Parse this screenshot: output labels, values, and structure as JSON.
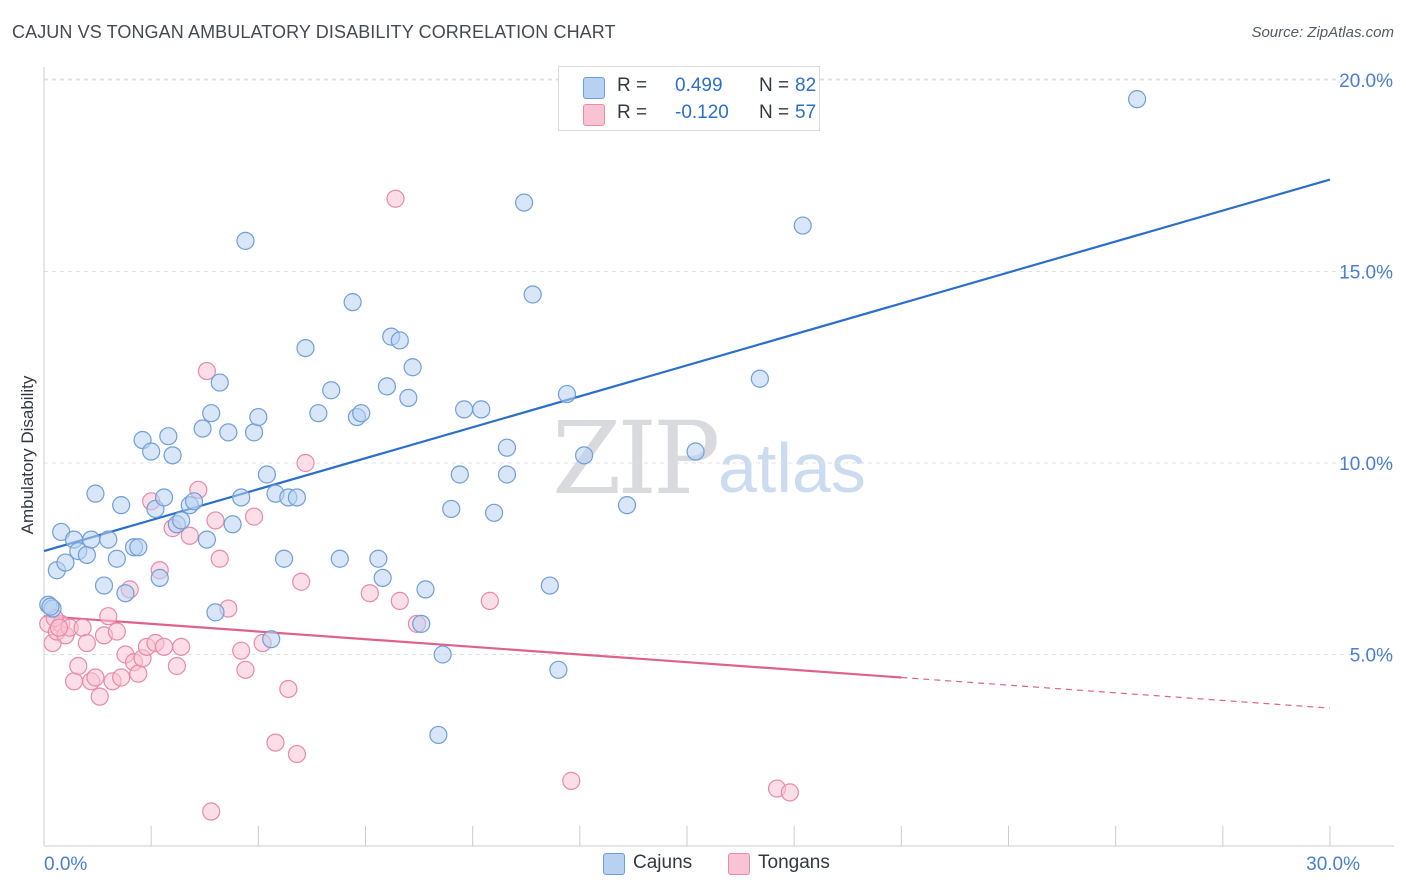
{
  "header": {
    "title": "CAJUN VS TONGAN AMBULATORY DISABILITY CORRELATION CHART",
    "source": "Source: ZipAtlas.com"
  },
  "watermark": {
    "part1": "ZIP",
    "part2": "atlas"
  },
  "legend_top": {
    "rows": [
      {
        "r_label": "R =",
        "r_value": "0.499",
        "n_label": "N =",
        "n_value": "82"
      },
      {
        "r_label": "R =",
        "r_value": "-0.120",
        "n_label": "N =",
        "n_value": "57"
      }
    ]
  },
  "legend_bottom": {
    "items": [
      "Cajuns",
      "Tongans"
    ]
  },
  "colors": {
    "cajun_fill": "#b8d1f2",
    "cajun_stroke": "#6f9fd8",
    "cajun_line": "#2c6fca",
    "tongan_fill": "#f8c3d3",
    "tongan_stroke": "#e88aa8",
    "tongan_line": "#e0628a",
    "axis_label": "#4a7fcf",
    "grid": "#dde0e4"
  },
  "chart_data": {
    "type": "scatter",
    "title": "CAJUN VS TONGAN AMBULATORY DISABILITY CORRELATION CHART",
    "xlabel": "",
    "ylabel": "Ambulatory Disability",
    "xlim": [
      0,
      30
    ],
    "ylim": [
      0,
      20
    ],
    "x_tick_labels": [
      {
        "value": 0,
        "label": "0.0%"
      },
      {
        "value": 30,
        "label": "30.0%"
      }
    ],
    "y_tick_labels": [
      {
        "value": 5,
        "label": "5.0%"
      },
      {
        "value": 10,
        "label": "10.0%"
      },
      {
        "value": 15,
        "label": "15.0%"
      },
      {
        "value": 20,
        "label": "20.0%"
      }
    ],
    "grid": true,
    "legend_position": "top-center",
    "series": [
      {
        "name": "Cajuns",
        "r": 0.499,
        "n": 82,
        "trend": {
          "x0": 0,
          "y0": 7.7,
          "x1": 30,
          "y1": 17.4,
          "dashed_from": null
        },
        "points": [
          [
            0.1,
            6.3
          ],
          [
            0.2,
            6.2
          ],
          [
            0.3,
            7.2
          ],
          [
            0.4,
            8.2
          ],
          [
            0.5,
            7.4
          ],
          [
            0.7,
            8.0
          ],
          [
            0.8,
            7.7
          ],
          [
            1.0,
            7.6
          ],
          [
            1.1,
            8.0
          ],
          [
            1.2,
            9.2
          ],
          [
            1.4,
            6.8
          ],
          [
            1.5,
            8.0
          ],
          [
            1.7,
            7.5
          ],
          [
            1.8,
            8.9
          ],
          [
            1.9,
            6.6
          ],
          [
            2.1,
            7.8
          ],
          [
            2.2,
            7.8
          ],
          [
            2.3,
            10.6
          ],
          [
            2.5,
            10.3
          ],
          [
            2.6,
            8.8
          ],
          [
            2.7,
            7.0
          ],
          [
            2.8,
            9.1
          ],
          [
            2.9,
            10.7
          ],
          [
            3.0,
            10.2
          ],
          [
            3.1,
            8.4
          ],
          [
            3.2,
            8.5
          ],
          [
            3.4,
            8.9
          ],
          [
            3.5,
            9.0
          ],
          [
            3.7,
            10.9
          ],
          [
            3.8,
            8.0
          ],
          [
            3.9,
            11.3
          ],
          [
            4.0,
            6.1
          ],
          [
            4.1,
            12.1
          ],
          [
            4.3,
            10.8
          ],
          [
            4.4,
            8.4
          ],
          [
            4.6,
            9.1
          ],
          [
            4.7,
            15.8
          ],
          [
            4.9,
            10.8
          ],
          [
            5.0,
            11.2
          ],
          [
            5.2,
            9.7
          ],
          [
            5.3,
            5.4
          ],
          [
            5.4,
            9.2
          ],
          [
            5.6,
            7.5
          ],
          [
            5.7,
            9.1
          ],
          [
            5.9,
            9.1
          ],
          [
            6.1,
            13.0
          ],
          [
            6.4,
            11.3
          ],
          [
            6.7,
            11.9
          ],
          [
            6.9,
            7.5
          ],
          [
            7.2,
            14.2
          ],
          [
            7.3,
            11.2
          ],
          [
            7.4,
            11.3
          ],
          [
            7.8,
            7.5
          ],
          [
            7.9,
            7.0
          ],
          [
            8.0,
            12.0
          ],
          [
            8.1,
            13.3
          ],
          [
            8.3,
            13.2
          ],
          [
            8.5,
            11.7
          ],
          [
            8.6,
            12.5
          ],
          [
            8.8,
            5.8
          ],
          [
            8.9,
            6.7
          ],
          [
            9.2,
            2.9
          ],
          [
            9.3,
            5.0
          ],
          [
            9.5,
            8.8
          ],
          [
            9.7,
            9.7
          ],
          [
            9.8,
            11.4
          ],
          [
            10.2,
            11.4
          ],
          [
            10.5,
            8.7
          ],
          [
            10.8,
            10.4
          ],
          [
            10.8,
            9.7
          ],
          [
            11.2,
            16.8
          ],
          [
            11.4,
            14.4
          ],
          [
            11.8,
            6.8
          ],
          [
            12.0,
            4.6
          ],
          [
            12.2,
            11.8
          ],
          [
            12.6,
            10.2
          ],
          [
            13.6,
            8.9
          ],
          [
            15.2,
            10.3
          ],
          [
            16.7,
            12.2
          ],
          [
            17.7,
            16.2
          ],
          [
            25.5,
            19.5
          ],
          [
            0.15,
            6.25
          ]
        ]
      },
      {
        "name": "Tongans",
        "r": -0.12,
        "n": 57,
        "trend": {
          "x0": 0,
          "y0": 6.0,
          "x1": 30,
          "y1": 3.6,
          "dashed_from": 20.0
        },
        "points": [
          [
            0.1,
            5.8
          ],
          [
            0.2,
            5.3
          ],
          [
            0.3,
            5.6
          ],
          [
            0.4,
            5.8
          ],
          [
            0.5,
            5.5
          ],
          [
            0.6,
            5.7
          ],
          [
            0.7,
            4.3
          ],
          [
            0.8,
            4.7
          ],
          [
            0.9,
            5.7
          ],
          [
            1.0,
            5.3
          ],
          [
            1.1,
            4.3
          ],
          [
            1.2,
            4.4
          ],
          [
            1.3,
            3.9
          ],
          [
            1.4,
            5.5
          ],
          [
            1.5,
            6.0
          ],
          [
            1.6,
            4.3
          ],
          [
            1.7,
            5.6
          ],
          [
            1.8,
            4.4
          ],
          [
            1.9,
            5.0
          ],
          [
            2.0,
            6.7
          ],
          [
            2.1,
            4.8
          ],
          [
            2.2,
            4.5
          ],
          [
            2.3,
            4.9
          ],
          [
            2.4,
            5.2
          ],
          [
            2.5,
            9.0
          ],
          [
            2.6,
            5.3
          ],
          [
            2.7,
            7.2
          ],
          [
            2.8,
            5.2
          ],
          [
            3.0,
            8.3
          ],
          [
            3.1,
            4.7
          ],
          [
            3.2,
            5.2
          ],
          [
            3.4,
            8.1
          ],
          [
            3.6,
            9.3
          ],
          [
            3.8,
            12.4
          ],
          [
            3.9,
            0.9
          ],
          [
            4.0,
            8.5
          ],
          [
            4.1,
            7.5
          ],
          [
            4.3,
            6.2
          ],
          [
            4.6,
            5.1
          ],
          [
            4.7,
            4.6
          ],
          [
            4.9,
            8.6
          ],
          [
            5.1,
            5.3
          ],
          [
            5.4,
            2.7
          ],
          [
            5.7,
            4.1
          ],
          [
            5.9,
            2.4
          ],
          [
            6.0,
            6.9
          ],
          [
            6.1,
            10.0
          ],
          [
            7.6,
            6.6
          ],
          [
            8.2,
            16.9
          ],
          [
            8.3,
            6.4
          ],
          [
            8.7,
            5.8
          ],
          [
            10.4,
            6.4
          ],
          [
            12.3,
            1.7
          ],
          [
            17.1,
            1.5
          ],
          [
            17.4,
            1.4
          ],
          [
            0.25,
            5.95
          ],
          [
            0.35,
            5.7
          ]
        ]
      }
    ]
  }
}
